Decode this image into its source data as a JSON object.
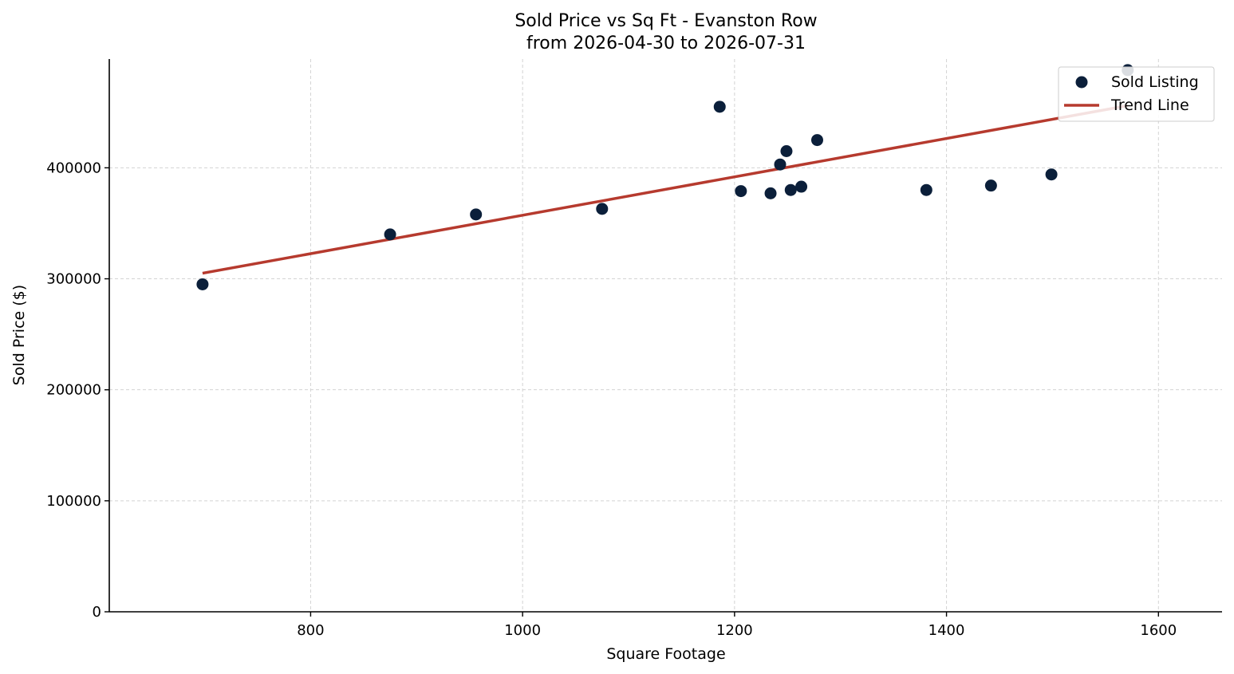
{
  "chart_data": {
    "type": "scatter",
    "title": "Sold Price vs Sq Ft - Evanston Row",
    "subtitle": "from 2026-04-30 to 2026-07-31",
    "xlabel": "Square Footage",
    "ylabel": "Sold Price ($)",
    "xlim": [
      610,
      1660
    ],
    "ylim": [
      0,
      498000
    ],
    "xticks": [
      800,
      1000,
      1200,
      1400,
      1600
    ],
    "yticks": [
      0,
      100000,
      200000,
      300000,
      400000
    ],
    "grid": true,
    "legend_position": "top-right",
    "series": [
      {
        "name": "Sold Listing",
        "kind": "scatter",
        "color": "#0b1f3a",
        "points": [
          {
            "x": 698,
            "y": 295000
          },
          {
            "x": 875,
            "y": 340000
          },
          {
            "x": 956,
            "y": 358000
          },
          {
            "x": 1075,
            "y": 363000
          },
          {
            "x": 1186,
            "y": 455000
          },
          {
            "x": 1206,
            "y": 379000
          },
          {
            "x": 1234,
            "y": 377000
          },
          {
            "x": 1243,
            "y": 403000
          },
          {
            "x": 1249,
            "y": 415000
          },
          {
            "x": 1253,
            "y": 380000
          },
          {
            "x": 1263,
            "y": 383000
          },
          {
            "x": 1278,
            "y": 425000
          },
          {
            "x": 1381,
            "y": 380000
          },
          {
            "x": 1442,
            "y": 384000
          },
          {
            "x": 1499,
            "y": 394000
          },
          {
            "x": 1571,
            "y": 488000
          }
        ]
      },
      {
        "name": "Trend Line",
        "kind": "line",
        "color": "#b63a2e",
        "points": [
          {
            "x": 698,
            "y": 305000
          },
          {
            "x": 1571,
            "y": 456000
          }
        ]
      }
    ]
  }
}
